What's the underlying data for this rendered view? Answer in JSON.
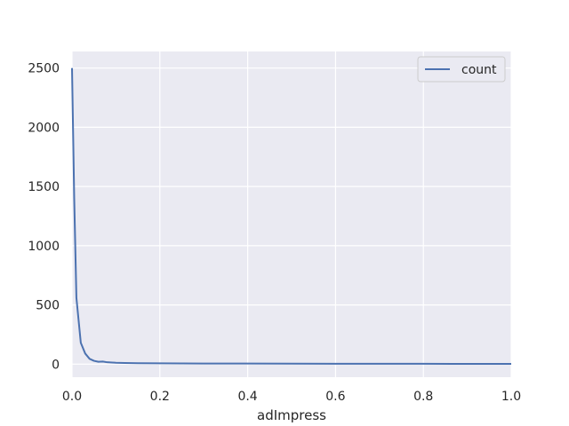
{
  "chart_data": {
    "type": "line",
    "title": "",
    "xlabel": "adImpress",
    "ylabel": "",
    "xlim": [
      0.0,
      1.0
    ],
    "ylim": [
      -110,
      2640
    ],
    "grid": true,
    "legend_position": "top-right",
    "x_ticks": [
      0.0,
      0.2,
      0.4,
      0.6,
      0.8,
      1.0
    ],
    "x_tick_labels": [
      "0.0",
      "0.2",
      "0.4",
      "0.6",
      "0.8",
      "1.0"
    ],
    "y_ticks": [
      0,
      500,
      1000,
      1500,
      2000,
      2500
    ],
    "y_tick_labels": [
      "0",
      "500",
      "1000",
      "1500",
      "2000",
      "2500"
    ],
    "colors": {
      "background": "#eaeaf2",
      "grid": "#ffffff",
      "series": "#4c72b0"
    },
    "series": [
      {
        "name": "count",
        "x": [
          0.0,
          0.005,
          0.01,
          0.02,
          0.03,
          0.04,
          0.05,
          0.06,
          0.07,
          0.08,
          0.1,
          0.12,
          0.15,
          0.2,
          0.25,
          0.3,
          0.35,
          0.4,
          0.5,
          0.6,
          0.7,
          0.8,
          0.9,
          1.0
        ],
        "values": [
          2500,
          1400,
          560,
          180,
          90,
          45,
          28,
          20,
          22,
          16,
          12,
          10,
          8,
          7,
          6,
          5,
          5,
          5,
          4,
          3,
          3,
          3,
          2,
          2
        ]
      }
    ]
  }
}
